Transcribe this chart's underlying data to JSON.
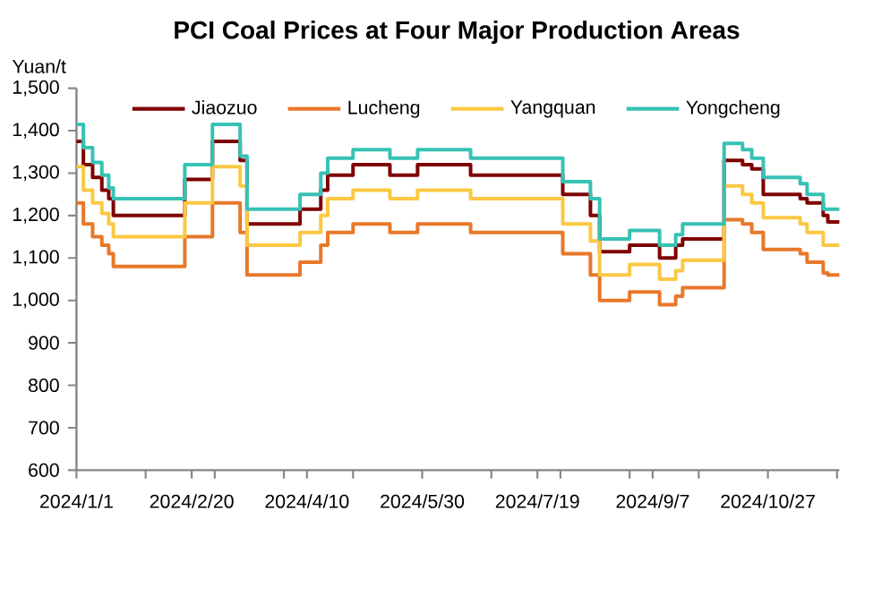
{
  "chart_data": {
    "type": "step",
    "title": "PCI Coal Prices at Four Major Production Areas",
    "ylabel": "Yuan/t",
    "x": [
      "2024-01-01",
      "2024-01-04",
      "2024-01-08",
      "2024-01-12",
      "2024-01-15",
      "2024-01-17",
      "2024-02-17",
      "2024-02-29",
      "2024-03-12",
      "2024-03-15",
      "2024-04-07",
      "2024-04-16",
      "2024-04-19",
      "2024-04-30",
      "2024-05-16",
      "2024-05-28",
      "2024-06-20",
      "2024-07-30",
      "2024-08-11",
      "2024-08-15",
      "2024-08-28",
      "2024-09-10",
      "2024-09-17",
      "2024-09-20",
      "2024-10-08",
      "2024-10-16",
      "2024-10-20",
      "2024-10-25",
      "2024-11-10",
      "2024-11-13",
      "2024-11-20",
      "2024-11-22",
      "2024-11-27"
    ],
    "series": [
      {
        "name": "Jiaozuo",
        "color": "#7f0000",
        "values": [
          1375,
          1320,
          1290,
          1260,
          1240,
          1200,
          1285,
          1375,
          1330,
          1180,
          1215,
          1260,
          1295,
          1320,
          1295,
          1320,
          1295,
          1250,
          1200,
          1115,
          1130,
          1100,
          1130,
          1145,
          1330,
          1320,
          1310,
          1250,
          1240,
          1230,
          1200,
          1185,
          1185
        ]
      },
      {
        "name": "Lucheng",
        "color": "#e8782a",
        "values": [
          1230,
          1180,
          1150,
          1130,
          1110,
          1080,
          1150,
          1230,
          1160,
          1060,
          1090,
          1130,
          1160,
          1180,
          1160,
          1180,
          1160,
          1110,
          1060,
          1000,
          1020,
          990,
          1010,
          1030,
          1190,
          1180,
          1160,
          1120,
          1110,
          1090,
          1065,
          1060,
          1060
        ]
      },
      {
        "name": "Yangquan",
        "color": "#fbc843",
        "values": [
          1315,
          1260,
          1230,
          1205,
          1180,
          1150,
          1230,
          1315,
          1270,
          1130,
          1160,
          1200,
          1240,
          1260,
          1240,
          1260,
          1240,
          1180,
          1140,
          1060,
          1085,
          1050,
          1070,
          1095,
          1270,
          1250,
          1230,
          1195,
          1180,
          1160,
          1130,
          1130,
          1130
        ]
      },
      {
        "name": "Yongcheng",
        "color": "#36c2b4",
        "values": [
          1415,
          1360,
          1325,
          1295,
          1265,
          1240,
          1320,
          1415,
          1340,
          1215,
          1250,
          1300,
          1335,
          1355,
          1335,
          1355,
          1335,
          1280,
          1240,
          1145,
          1165,
          1130,
          1155,
          1180,
          1370,
          1355,
          1335,
          1290,
          1275,
          1250,
          1215,
          1215,
          1215
        ]
      }
    ],
    "xlim": [
      "2024-01-01",
      "2024-11-27"
    ],
    "xticks": [
      {
        "value": "2024-01-01",
        "label": "2024/1/1"
      },
      {
        "value": "2024-01-31",
        "label": null
      },
      {
        "value": "2024-02-20",
        "label": "2024/2/20"
      },
      {
        "value": "2024-03-01",
        "label": null
      },
      {
        "value": "2024-03-31",
        "label": null
      },
      {
        "value": "2024-04-10",
        "label": "2024/4/10"
      },
      {
        "value": "2024-04-30",
        "label": null
      },
      {
        "value": "2024-05-30",
        "label": "2024/5/30"
      },
      {
        "value": "2024-06-29",
        "label": null
      },
      {
        "value": "2024-07-19",
        "label": "2024/7/19"
      },
      {
        "value": "2024-07-29",
        "label": null
      },
      {
        "value": "2024-08-28",
        "label": null
      },
      {
        "value": "2024-09-07",
        "label": "2024/9/7"
      },
      {
        "value": "2024-09-27",
        "label": null
      },
      {
        "value": "2024-10-27",
        "label": "2024/10/27"
      },
      {
        "value": "2024-11-26",
        "label": null
      }
    ],
    "ylim": [
      600,
      1500
    ],
    "yticks": [
      600,
      700,
      800,
      900,
      {
        "value": 1000,
        "label": "1,000"
      },
      {
        "value": 1100,
        "label": "1,100"
      },
      {
        "value": 1200,
        "label": "1,200"
      },
      {
        "value": 1300,
        "label": "1,300"
      },
      {
        "value": 1400,
        "label": "1,400"
      },
      {
        "value": 1500,
        "label": "1,500"
      }
    ],
    "legend": "top"
  }
}
